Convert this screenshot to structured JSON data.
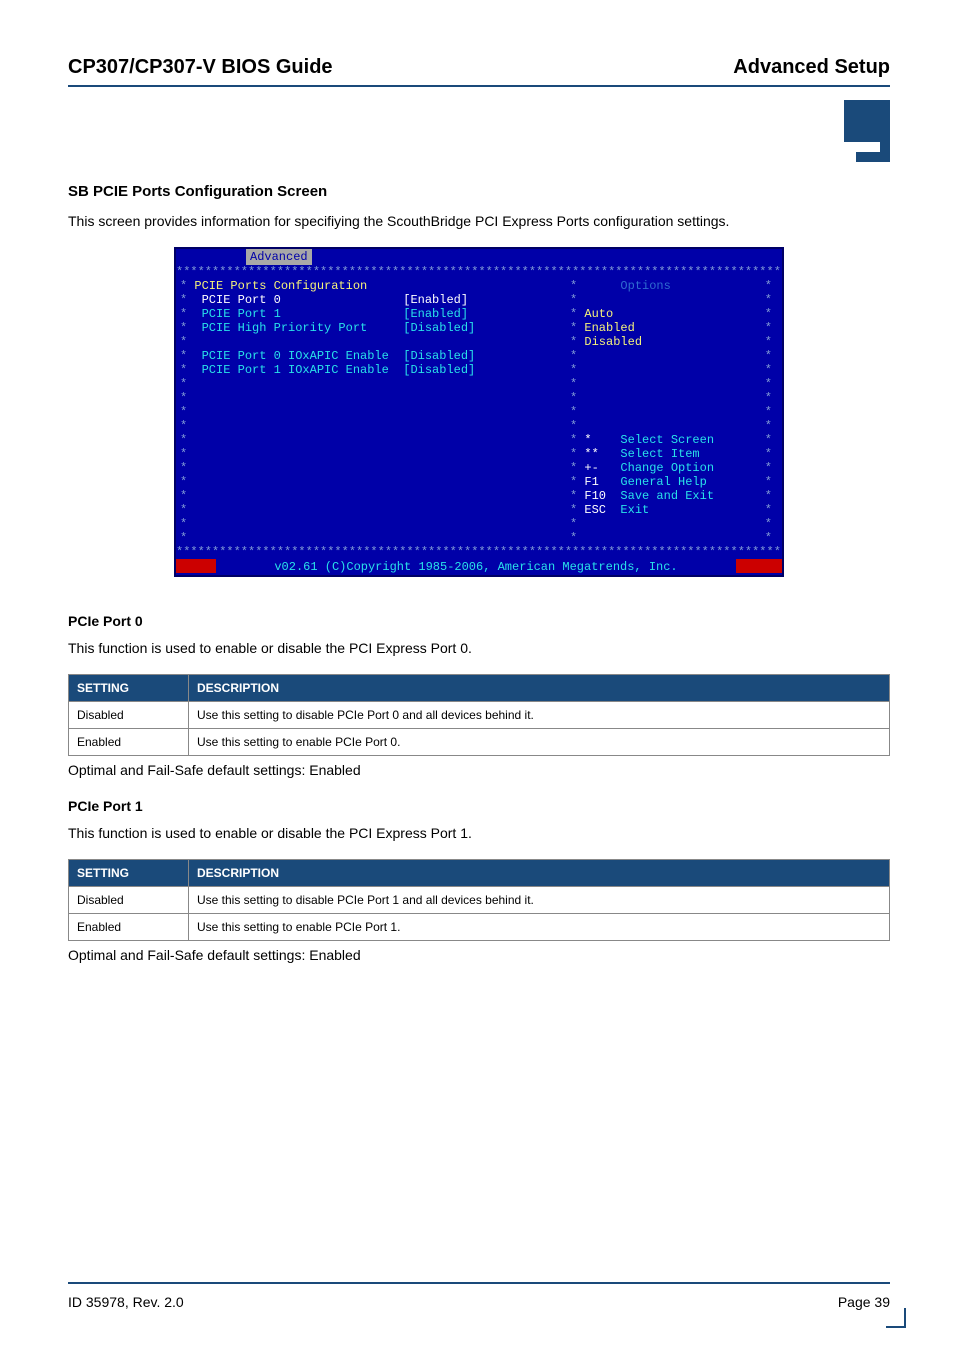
{
  "header": {
    "left": "CP307/CP307-V BIOS Guide",
    "right": "Advanced Setup"
  },
  "section_title": "SB PCIE Ports Configuration Screen",
  "section_para": "This screen provides information for specifiying the ScouthBridge PCI Express Ports configuration settings.",
  "bios": {
    "tab": "Advanced",
    "stars": "****************************************************************************************",
    "left": {
      "title": "PCIE Ports Configuration",
      "rows": [
        {
          "label": "  PCIE Port 0",
          "value": "[Enabled]",
          "sel": true
        },
        {
          "label": "  PCIE Port 1",
          "value": "[Enabled]",
          "sel": false
        },
        {
          "label": "  PCIE High Priority Port",
          "value": "[Disabled]",
          "sel": false
        },
        {
          "label": "",
          "value": "",
          "sel": false
        },
        {
          "label": "  PCIE Port 0 IOxAPIC Enable",
          "value": "[Disabled]",
          "sel": false
        },
        {
          "label": "  PCIE Port 1 IOxAPIC Enable",
          "value": "[Disabled]",
          "sel": false
        }
      ]
    },
    "right": {
      "options_title": "Options",
      "options": [
        "Auto",
        "Enabled",
        "Disabled"
      ],
      "help": [
        {
          "k": "*",
          "v": "Select Screen"
        },
        {
          "k": "**",
          "v": "Select Item"
        },
        {
          "k": "+-",
          "v": "Change Option"
        },
        {
          "k": "F1",
          "v": "General Help"
        },
        {
          "k": "F10",
          "v": "Save and Exit"
        },
        {
          "k": "ESC",
          "v": "Exit"
        }
      ]
    },
    "footer": "v02.61 (C)Copyright 1985-2006, American Megatrends, Inc."
  },
  "port0": {
    "title": "PCIe Port 0",
    "para": "This function is used to enable or disable the PCI Express Port 0.",
    "th1": "SETTING",
    "th2": "DESCRIPTION",
    "rows": [
      {
        "s": "Disabled",
        "d": "Use this setting to disable PCIe Port 0 and all devices behind it."
      },
      {
        "s": "Enabled",
        "d": "Use this setting to enable PCIe Port 0."
      }
    ],
    "optimal": "Optimal and Fail-Safe default settings: Enabled"
  },
  "port1": {
    "title": "PCIe Port 1",
    "para": "This function is used to enable or disable the PCI Express Port 1.",
    "th1": "SETTING",
    "th2": "DESCRIPTION",
    "rows": [
      {
        "s": "Disabled",
        "d": "Use this setting to disable PCIe Port 1 and all devices behind it."
      },
      {
        "s": "Enabled",
        "d": "Use this setting to enable PCIe Port 1."
      }
    ],
    "optimal": "Optimal and Fail-Safe default settings: Enabled"
  },
  "footer": {
    "left": "ID 35978, Rev. 2.0",
    "right": "Page 39"
  }
}
